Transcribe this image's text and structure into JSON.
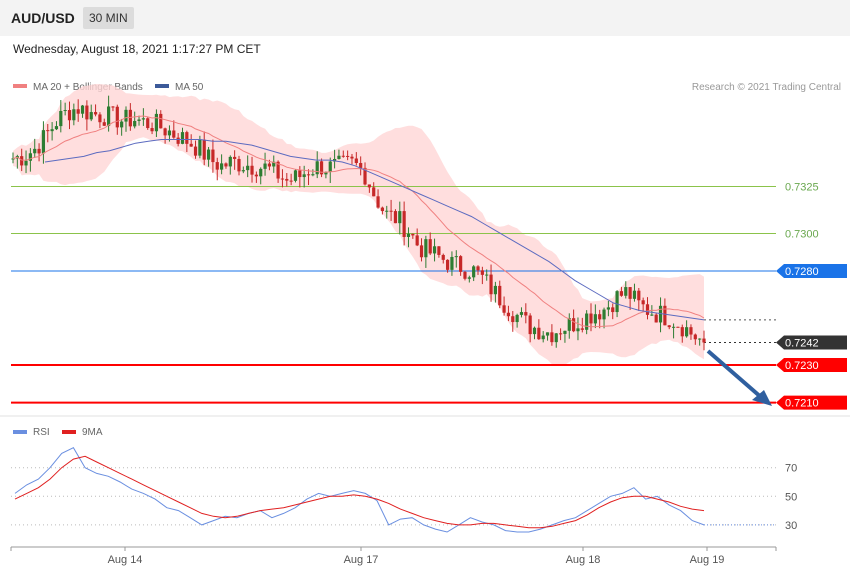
{
  "header": {
    "symbol": "AUD/USD",
    "timeframe": "30 MIN",
    "datetime": "Wednesday, August 18, 2021 1:17:27 PM CET",
    "credit": "Research © 2021 Trading Central"
  },
  "legend": {
    "ma20": "MA 20 + Bollinger Bands",
    "ma50": "MA 50",
    "rsi": "RSI",
    "ma9": "9MA"
  },
  "colors": {
    "bull": "#2e7d32",
    "bear": "#c62828",
    "bollinger": "#ffd6d6",
    "ma20": "#f08080",
    "ma50": "#5c6bc0",
    "support": "#ff0000",
    "resistance_green": "#8bc34a",
    "resistance_blue": "#1a73e8",
    "current": "#333333",
    "arrow": "#2f5f9f",
    "rsi": "#6a8fe0",
    "rsi_ma": "#e02020"
  },
  "chart_data": [
    {
      "type": "line",
      "title": "",
      "y_range": [
        0.7205,
        0.7371
      ],
      "x_ticks": [
        "Aug 14",
        "Aug 17",
        "Aug 18",
        "Aug 19"
      ],
      "levels": [
        {
          "value": 0.7325,
          "label": "0.7325",
          "kind": "resistance-green"
        },
        {
          "value": 0.73,
          "label": "0.7300",
          "kind": "resistance-green"
        },
        {
          "value": 0.728,
          "label": "0.7280",
          "kind": "resistance-blue"
        },
        {
          "value": 0.7242,
          "label": "0.7242",
          "kind": "current"
        },
        {
          "value": 0.723,
          "label": "0.7230",
          "kind": "support"
        },
        {
          "value": 0.721,
          "label": "0.7210",
          "kind": "support"
        }
      ],
      "price_path": [
        0.734,
        0.7341,
        0.7345,
        0.7352,
        0.736,
        0.7365,
        0.7367,
        0.7364,
        0.7363,
        0.7362,
        0.736,
        0.7361,
        0.7359,
        0.7358,
        0.7355,
        0.7352,
        0.7349,
        0.7345,
        0.7339,
        0.7336,
        0.7338,
        0.7337,
        0.7336,
        0.7335,
        0.7332,
        0.7328,
        0.733,
        0.7334,
        0.7336,
        0.7335,
        0.7336,
        0.7337,
        0.7333,
        0.732,
        0.731,
        0.7308,
        0.7302,
        0.7293,
        0.729,
        0.7287,
        0.7284,
        0.7282,
        0.728,
        0.7275,
        0.7268,
        0.7262,
        0.7256,
        0.7251,
        0.7249,
        0.7247,
        0.725,
        0.7252,
        0.7255,
        0.7258,
        0.726,
        0.7266,
        0.7269,
        0.7262,
        0.7259,
        0.7257,
        0.7255,
        0.7251,
        0.7246,
        0.7242
      ],
      "ma50": [
        0.7338,
        0.7339,
        0.734,
        0.7341,
        0.7343,
        0.7344,
        0.7346,
        0.7348,
        0.7349,
        0.735,
        0.735,
        0.735,
        0.735,
        0.7349,
        0.7349,
        0.7348,
        0.7347,
        0.7345,
        0.7343,
        0.7341,
        0.734,
        0.7339,
        0.7339,
        0.7338,
        0.7336,
        0.7333,
        0.733,
        0.7327,
        0.7324,
        0.7321,
        0.7318,
        0.7315,
        0.7312,
        0.7309,
        0.7305,
        0.7301,
        0.7297,
        0.7293,
        0.7289,
        0.7285,
        0.728,
        0.7275,
        0.7271,
        0.7267,
        0.7263,
        0.7261,
        0.7259,
        0.7258,
        0.7257,
        0.7256,
        0.7255,
        0.7254
      ]
    },
    {
      "type": "line",
      "title": "",
      "y_range": [
        18,
        88
      ],
      "y_ticks": [
        70,
        50,
        30
      ],
      "series": [
        {
          "name": "RSI",
          "values": [
            52,
            58,
            62,
            70,
            80,
            84,
            70,
            66,
            64,
            60,
            55,
            52,
            48,
            42,
            40,
            35,
            30,
            33,
            36,
            35,
            38,
            40,
            35,
            38,
            42,
            48,
            52,
            50,
            52,
            54,
            52,
            47,
            30,
            34,
            35,
            30,
            27,
            25,
            30,
            35,
            32,
            30,
            26,
            25,
            25,
            27,
            30,
            33,
            35,
            40,
            45,
            50,
            52,
            56,
            48,
            50,
            44,
            40,
            33,
            30
          ]
        },
        {
          "name": "9MA",
          "values": [
            48,
            52,
            56,
            62,
            70,
            76,
            78,
            74,
            70,
            66,
            62,
            58,
            54,
            50,
            46,
            42,
            38,
            36,
            35,
            36,
            38,
            40,
            41,
            42,
            44,
            46,
            48,
            50,
            50,
            51,
            50,
            48,
            45,
            41,
            38,
            35,
            33,
            31,
            30,
            30,
            31,
            31,
            30,
            29,
            28,
            28,
            29,
            31,
            33,
            37,
            42,
            46,
            49,
            50,
            50,
            48,
            46,
            43,
            41,
            40
          ]
        }
      ]
    }
  ]
}
